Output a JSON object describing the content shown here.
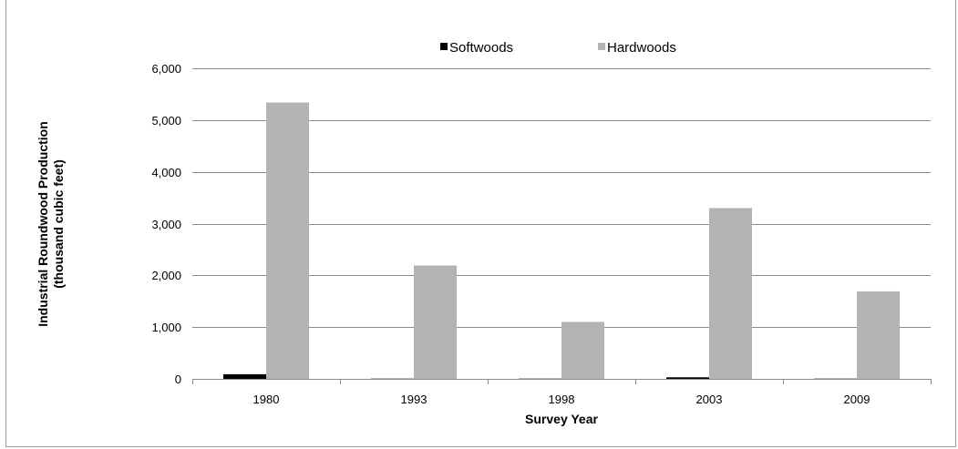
{
  "chart_data": {
    "type": "bar",
    "categories": [
      "1980",
      "1993",
      "1998",
      "2003",
      "2009"
    ],
    "series": [
      {
        "name": "Softwoods",
        "color": "#000000",
        "values": [
          90,
          5,
          5,
          30,
          5
        ]
      },
      {
        "name": "Hardwoods",
        "color": "#b3b3b3",
        "values": [
          5340,
          2190,
          1100,
          3300,
          1690
        ]
      }
    ],
    "ylim": [
      0,
      6000
    ],
    "yticks": [
      0,
      1000,
      2000,
      3000,
      4000,
      5000,
      6000
    ],
    "ytick_labels": [
      "0",
      "1,000",
      "2,000",
      "3,000",
      "4,000",
      "5,000",
      "6,000"
    ],
    "xlabel": "Survey Year",
    "ylabel_line1": "Industrial Roundwood Production",
    "ylabel_line2": "(thousand cubic feet)",
    "grid": "horizontal",
    "legend_position": "top"
  }
}
